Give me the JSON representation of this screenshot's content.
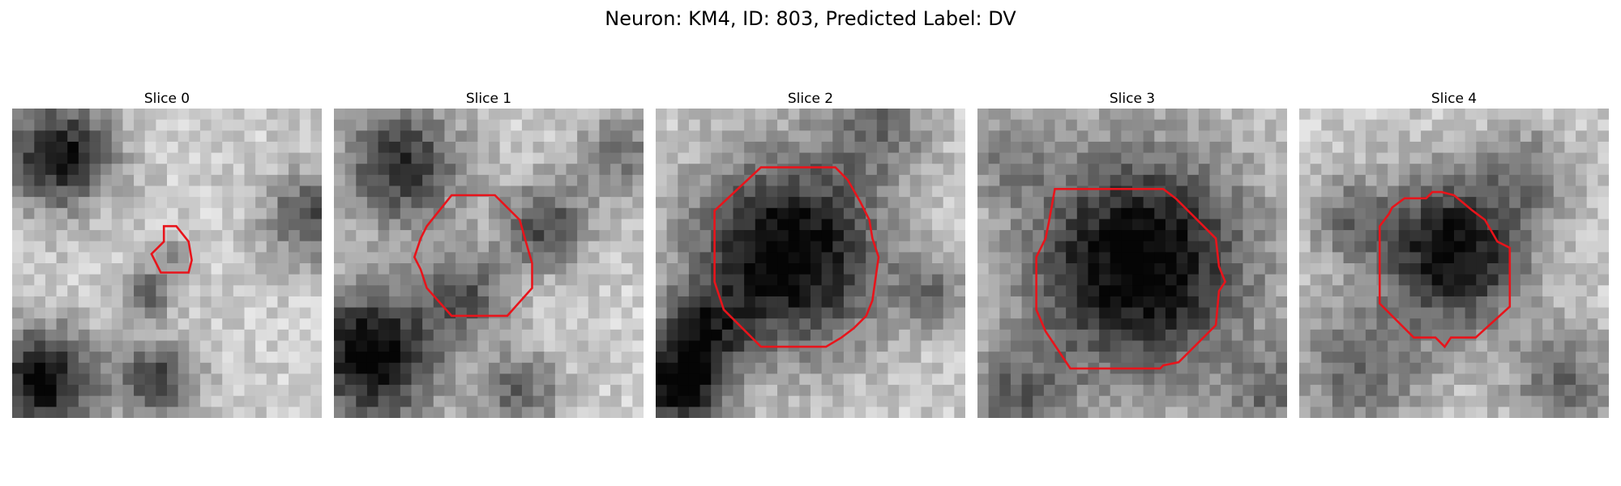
{
  "figure": {
    "title": "Neuron: KM4, ID: 803, Predicted Label: DV",
    "contour_color": "#e8141b",
    "colormap": "grayscale"
  },
  "panels": [
    {
      "title": "Slice 0",
      "texture_seed": 11,
      "blobs": [
        [
          0.15,
          0.15,
          0.12,
          0.75
        ],
        [
          0.1,
          0.88,
          0.12,
          0.8
        ],
        [
          0.47,
          0.88,
          0.09,
          0.55
        ],
        [
          0.43,
          0.6,
          0.06,
          0.4
        ],
        [
          0.96,
          0.35,
          0.1,
          0.5
        ],
        [
          0.52,
          0.48,
          0.05,
          0.25
        ]
      ],
      "mask": [
        [
          0.49,
          0.38
        ],
        [
          0.53,
          0.38
        ],
        [
          0.57,
          0.43
        ],
        [
          0.58,
          0.49
        ],
        [
          0.57,
          0.53
        ],
        [
          0.52,
          0.53
        ],
        [
          0.48,
          0.53
        ],
        [
          0.45,
          0.47
        ],
        [
          0.49,
          0.43
        ]
      ]
    },
    {
      "title": "Slice 1",
      "texture_seed": 23,
      "blobs": [
        [
          0.22,
          0.18,
          0.14,
          0.6
        ],
        [
          0.12,
          0.8,
          0.15,
          0.85
        ],
        [
          0.68,
          0.38,
          0.1,
          0.5
        ],
        [
          0.42,
          0.6,
          0.1,
          0.45
        ],
        [
          0.6,
          0.92,
          0.1,
          0.4
        ],
        [
          0.92,
          0.15,
          0.1,
          0.35
        ]
      ],
      "mask": [
        [
          0.38,
          0.28
        ],
        [
          0.52,
          0.28
        ],
        [
          0.6,
          0.36
        ],
        [
          0.62,
          0.43
        ],
        [
          0.64,
          0.5
        ],
        [
          0.64,
          0.58
        ],
        [
          0.56,
          0.67
        ],
        [
          0.52,
          0.67
        ],
        [
          0.38,
          0.67
        ],
        [
          0.3,
          0.58
        ],
        [
          0.28,
          0.52
        ],
        [
          0.26,
          0.48
        ],
        [
          0.28,
          0.42
        ],
        [
          0.3,
          0.38
        ]
      ]
    },
    {
      "title": "Slice 2",
      "texture_seed": 37,
      "blobs": [
        [
          0.43,
          0.47,
          0.22,
          0.85
        ],
        [
          0.08,
          0.9,
          0.1,
          0.8
        ],
        [
          0.15,
          0.72,
          0.1,
          0.45
        ],
        [
          0.72,
          0.05,
          0.12,
          0.35
        ],
        [
          0.9,
          0.6,
          0.08,
          0.3
        ]
      ],
      "mask": [
        [
          0.34,
          0.19
        ],
        [
          0.58,
          0.19
        ],
        [
          0.62,
          0.23
        ],
        [
          0.66,
          0.3
        ],
        [
          0.69,
          0.36
        ],
        [
          0.7,
          0.42
        ],
        [
          0.72,
          0.48
        ],
        [
          0.71,
          0.55
        ],
        [
          0.7,
          0.62
        ],
        [
          0.68,
          0.67
        ],
        [
          0.64,
          0.71
        ],
        [
          0.6,
          0.74
        ],
        [
          0.55,
          0.77
        ],
        [
          0.43,
          0.77
        ],
        [
          0.34,
          0.77
        ],
        [
          0.22,
          0.65
        ],
        [
          0.19,
          0.56
        ],
        [
          0.19,
          0.33
        ]
      ]
    },
    {
      "title": "Slice 3",
      "texture_seed": 53,
      "blobs": [
        [
          0.52,
          0.5,
          0.26,
          0.85
        ],
        [
          0.12,
          0.95,
          0.12,
          0.4
        ],
        [
          0.95,
          0.92,
          0.1,
          0.35
        ],
        [
          0.08,
          0.15,
          0.1,
          0.25
        ]
      ],
      "mask": [
        [
          0.25,
          0.26
        ],
        [
          0.6,
          0.26
        ],
        [
          0.64,
          0.29
        ],
        [
          0.7,
          0.35
        ],
        [
          0.77,
          0.42
        ],
        [
          0.78,
          0.51
        ],
        [
          0.8,
          0.56
        ],
        [
          0.78,
          0.59
        ],
        [
          0.77,
          0.7
        ],
        [
          0.65,
          0.82
        ],
        [
          0.6,
          0.83
        ],
        [
          0.59,
          0.84
        ],
        [
          0.3,
          0.84
        ],
        [
          0.22,
          0.72
        ],
        [
          0.19,
          0.65
        ],
        [
          0.19,
          0.48
        ],
        [
          0.22,
          0.42
        ],
        [
          0.23,
          0.37
        ]
      ]
    },
    {
      "title": "Slice 4",
      "texture_seed": 71,
      "blobs": [
        [
          0.5,
          0.46,
          0.17,
          0.8
        ],
        [
          0.2,
          0.85,
          0.15,
          0.4
        ],
        [
          0.85,
          0.88,
          0.12,
          0.4
        ],
        [
          0.75,
          0.2,
          0.1,
          0.3
        ],
        [
          0.15,
          0.35,
          0.1,
          0.3
        ]
      ],
      "mask": [
        [
          0.41,
          0.29
        ],
        [
          0.43,
          0.27
        ],
        [
          0.46,
          0.27
        ],
        [
          0.5,
          0.28
        ],
        [
          0.56,
          0.33
        ],
        [
          0.6,
          0.36
        ],
        [
          0.64,
          0.43
        ],
        [
          0.68,
          0.45
        ],
        [
          0.68,
          0.64
        ],
        [
          0.57,
          0.74
        ],
        [
          0.49,
          0.74
        ],
        [
          0.47,
          0.77
        ],
        [
          0.44,
          0.74
        ],
        [
          0.37,
          0.74
        ],
        [
          0.26,
          0.63
        ],
        [
          0.26,
          0.38
        ],
        [
          0.29,
          0.34
        ],
        [
          0.3,
          0.32
        ],
        [
          0.34,
          0.29
        ]
      ]
    }
  ]
}
